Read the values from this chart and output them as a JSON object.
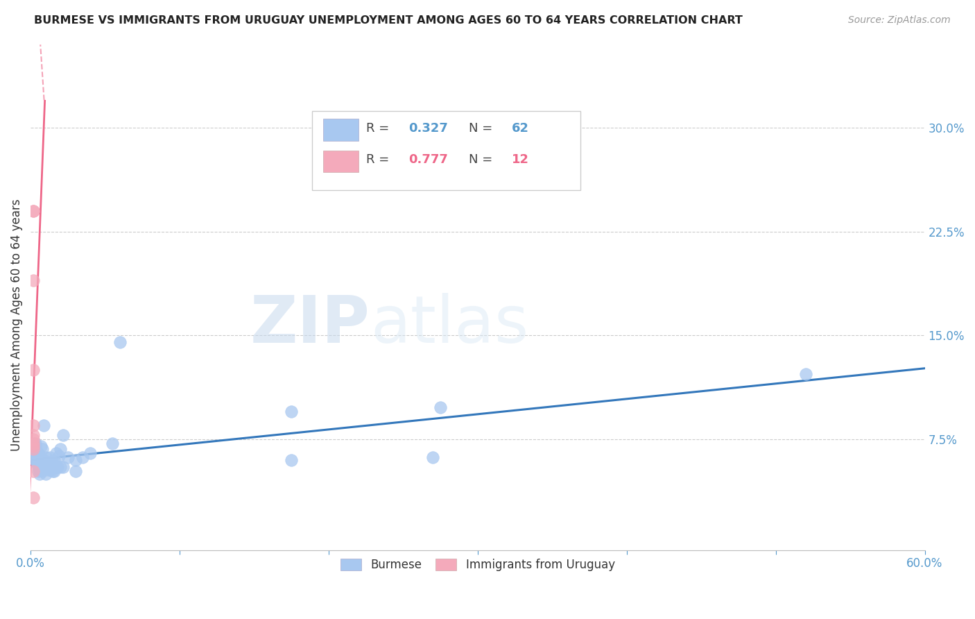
{
  "title": "BURMESE VS IMMIGRANTS FROM URUGUAY UNEMPLOYMENT AMONG AGES 60 TO 64 YEARS CORRELATION CHART",
  "source": "Source: ZipAtlas.com",
  "ylabel": "Unemployment Among Ages 60 to 64 years",
  "xlim": [
    0.0,
    0.6
  ],
  "ylim": [
    -0.005,
    0.32
  ],
  "ytick_vals": [
    0.075,
    0.15,
    0.225,
    0.3
  ],
  "ytick_labels": [
    "7.5%",
    "15.0%",
    "22.5%",
    "30.0%"
  ],
  "xtick_vals": [
    0.0,
    0.1,
    0.2,
    0.3,
    0.4,
    0.5,
    0.6
  ],
  "xtick_labels": [
    "0.0%",
    "",
    "",
    "",
    "",
    "",
    "60.0%"
  ],
  "blue_R": 0.327,
  "blue_N": 62,
  "pink_R": 0.777,
  "pink_N": 12,
  "blue_color": "#A8C8F0",
  "pink_color": "#F4AABB",
  "blue_line_color": "#3377BB",
  "pink_line_color": "#EE6688",
  "tick_color": "#5599CC",
  "watermark_zip": "ZIP",
  "watermark_atlas": "atlas",
  "blue_scatter_x": [
    0.003,
    0.003,
    0.003,
    0.003,
    0.003,
    0.003,
    0.004,
    0.004,
    0.004,
    0.004,
    0.005,
    0.005,
    0.005,
    0.005,
    0.005,
    0.005,
    0.006,
    0.006,
    0.006,
    0.007,
    0.007,
    0.007,
    0.007,
    0.008,
    0.008,
    0.008,
    0.009,
    0.009,
    0.01,
    0.01,
    0.01,
    0.01,
    0.012,
    0.012,
    0.013,
    0.013,
    0.014,
    0.014,
    0.015,
    0.015,
    0.016,
    0.016,
    0.017,
    0.017,
    0.018,
    0.019,
    0.02,
    0.02,
    0.022,
    0.022,
    0.025,
    0.03,
    0.03,
    0.035,
    0.04,
    0.055,
    0.06,
    0.175,
    0.175,
    0.27,
    0.275,
    0.52
  ],
  "blue_scatter_y": [
    0.06,
    0.063,
    0.065,
    0.068,
    0.07,
    0.072,
    0.058,
    0.06,
    0.063,
    0.066,
    0.052,
    0.055,
    0.058,
    0.06,
    0.063,
    0.065,
    0.05,
    0.053,
    0.057,
    0.055,
    0.058,
    0.062,
    0.07,
    0.052,
    0.058,
    0.068,
    0.06,
    0.085,
    0.05,
    0.055,
    0.058,
    0.062,
    0.053,
    0.058,
    0.055,
    0.062,
    0.053,
    0.058,
    0.052,
    0.058,
    0.052,
    0.06,
    0.055,
    0.065,
    0.055,
    0.063,
    0.055,
    0.068,
    0.055,
    0.078,
    0.062,
    0.052,
    0.06,
    0.062,
    0.065,
    0.072,
    0.145,
    0.06,
    0.095,
    0.062,
    0.098,
    0.122
  ],
  "pink_scatter_x": [
    0.002,
    0.002,
    0.002,
    0.002,
    0.002,
    0.002,
    0.002,
    0.002,
    0.002,
    0.002,
    0.002,
    0.002
  ],
  "pink_scatter_y": [
    0.24,
    0.24,
    0.19,
    0.125,
    0.085,
    0.078,
    0.075,
    0.072,
    0.07,
    0.068,
    0.052,
    0.033
  ]
}
